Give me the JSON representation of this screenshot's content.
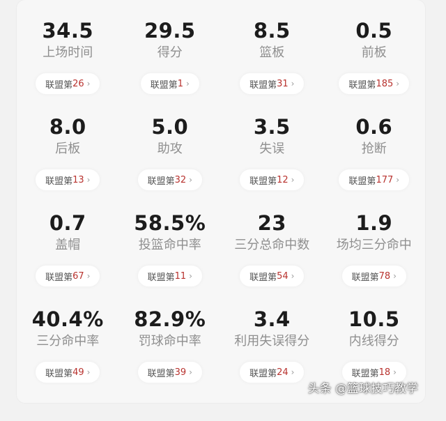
{
  "stats": [
    {
      "value": "34.5",
      "label": "上场时间",
      "rank_prefix": "联盟第",
      "rank": "26"
    },
    {
      "value": "29.5",
      "label": "得分",
      "rank_prefix": "联盟第",
      "rank": "1"
    },
    {
      "value": "8.5",
      "label": "篮板",
      "rank_prefix": "联盟第",
      "rank": "31"
    },
    {
      "value": "0.5",
      "label": "前板",
      "rank_prefix": "联盟第",
      "rank": "185"
    },
    {
      "value": "8.0",
      "label": "后板",
      "rank_prefix": "联盟第",
      "rank": "13"
    },
    {
      "value": "5.0",
      "label": "助攻",
      "rank_prefix": "联盟第",
      "rank": "32"
    },
    {
      "value": "3.5",
      "label": "失误",
      "rank_prefix": "联盟第",
      "rank": "12"
    },
    {
      "value": "0.6",
      "label": "抢断",
      "rank_prefix": "联盟第",
      "rank": "177"
    },
    {
      "value": "0.7",
      "label": "盖帽",
      "rank_prefix": "联盟第",
      "rank": "67"
    },
    {
      "value": "58.5%",
      "label": "投篮命中率",
      "rank_prefix": "联盟第",
      "rank": "11"
    },
    {
      "value": "23",
      "label": "三分总命中数",
      "rank_prefix": "联盟第",
      "rank": "54"
    },
    {
      "value": "1.9",
      "label": "场均三分命中",
      "rank_prefix": "联盟第",
      "rank": "78"
    },
    {
      "value": "40.4%",
      "label": "三分命中率",
      "rank_prefix": "联盟第",
      "rank": "49"
    },
    {
      "value": "82.9%",
      "label": "罚球命中率",
      "rank_prefix": "联盟第",
      "rank": "39"
    },
    {
      "value": "3.4",
      "label": "利用失误得分",
      "rank_prefix": "联盟第",
      "rank": "24"
    },
    {
      "value": "10.5",
      "label": "内线得分",
      "rank_prefix": "联盟第",
      "rank": "18"
    }
  ],
  "watermark": "头条 @篮球技巧教学",
  "icons": {
    "rank_chevron": "chevron-right-icon"
  },
  "colors": {
    "rank_number": "#b8322e",
    "value_text": "#1c1c1c",
    "label_text": "#8f8f8f"
  }
}
